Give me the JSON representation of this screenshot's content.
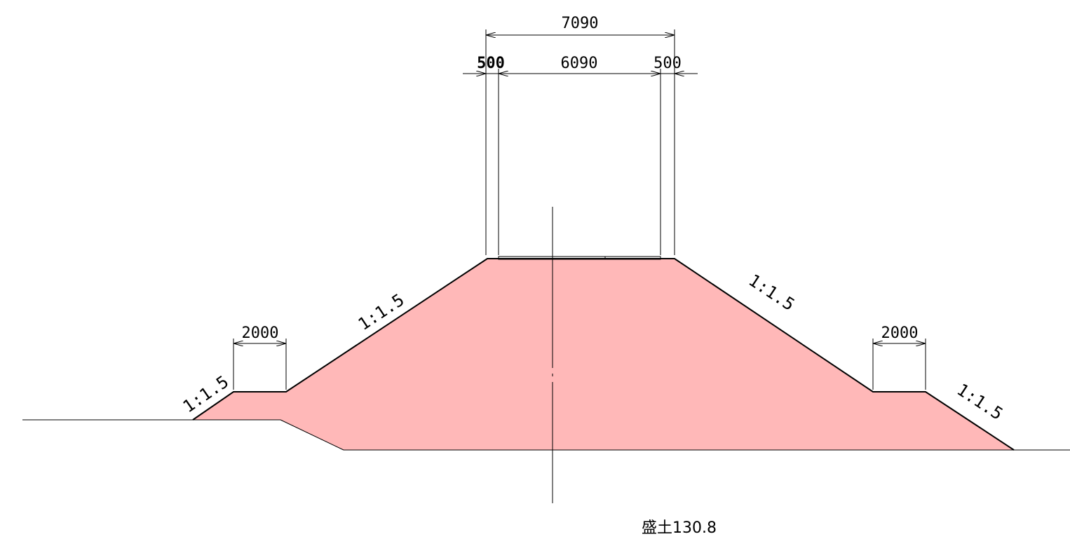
{
  "dimensions": {
    "total_top_width": "7090",
    "left_shoulder": "500",
    "carriageway": "6090",
    "right_shoulder": "500",
    "left_berm": "2000",
    "right_berm": "2000"
  },
  "slopes": {
    "upper_left": "1:1.5",
    "upper_right": "1:1.5",
    "lower_left": "1:1.5",
    "lower_right": "1:1.5"
  },
  "caption": "盛土130.8",
  "colors": {
    "fill_area": "#ffb8b8",
    "lines": "#000000"
  }
}
